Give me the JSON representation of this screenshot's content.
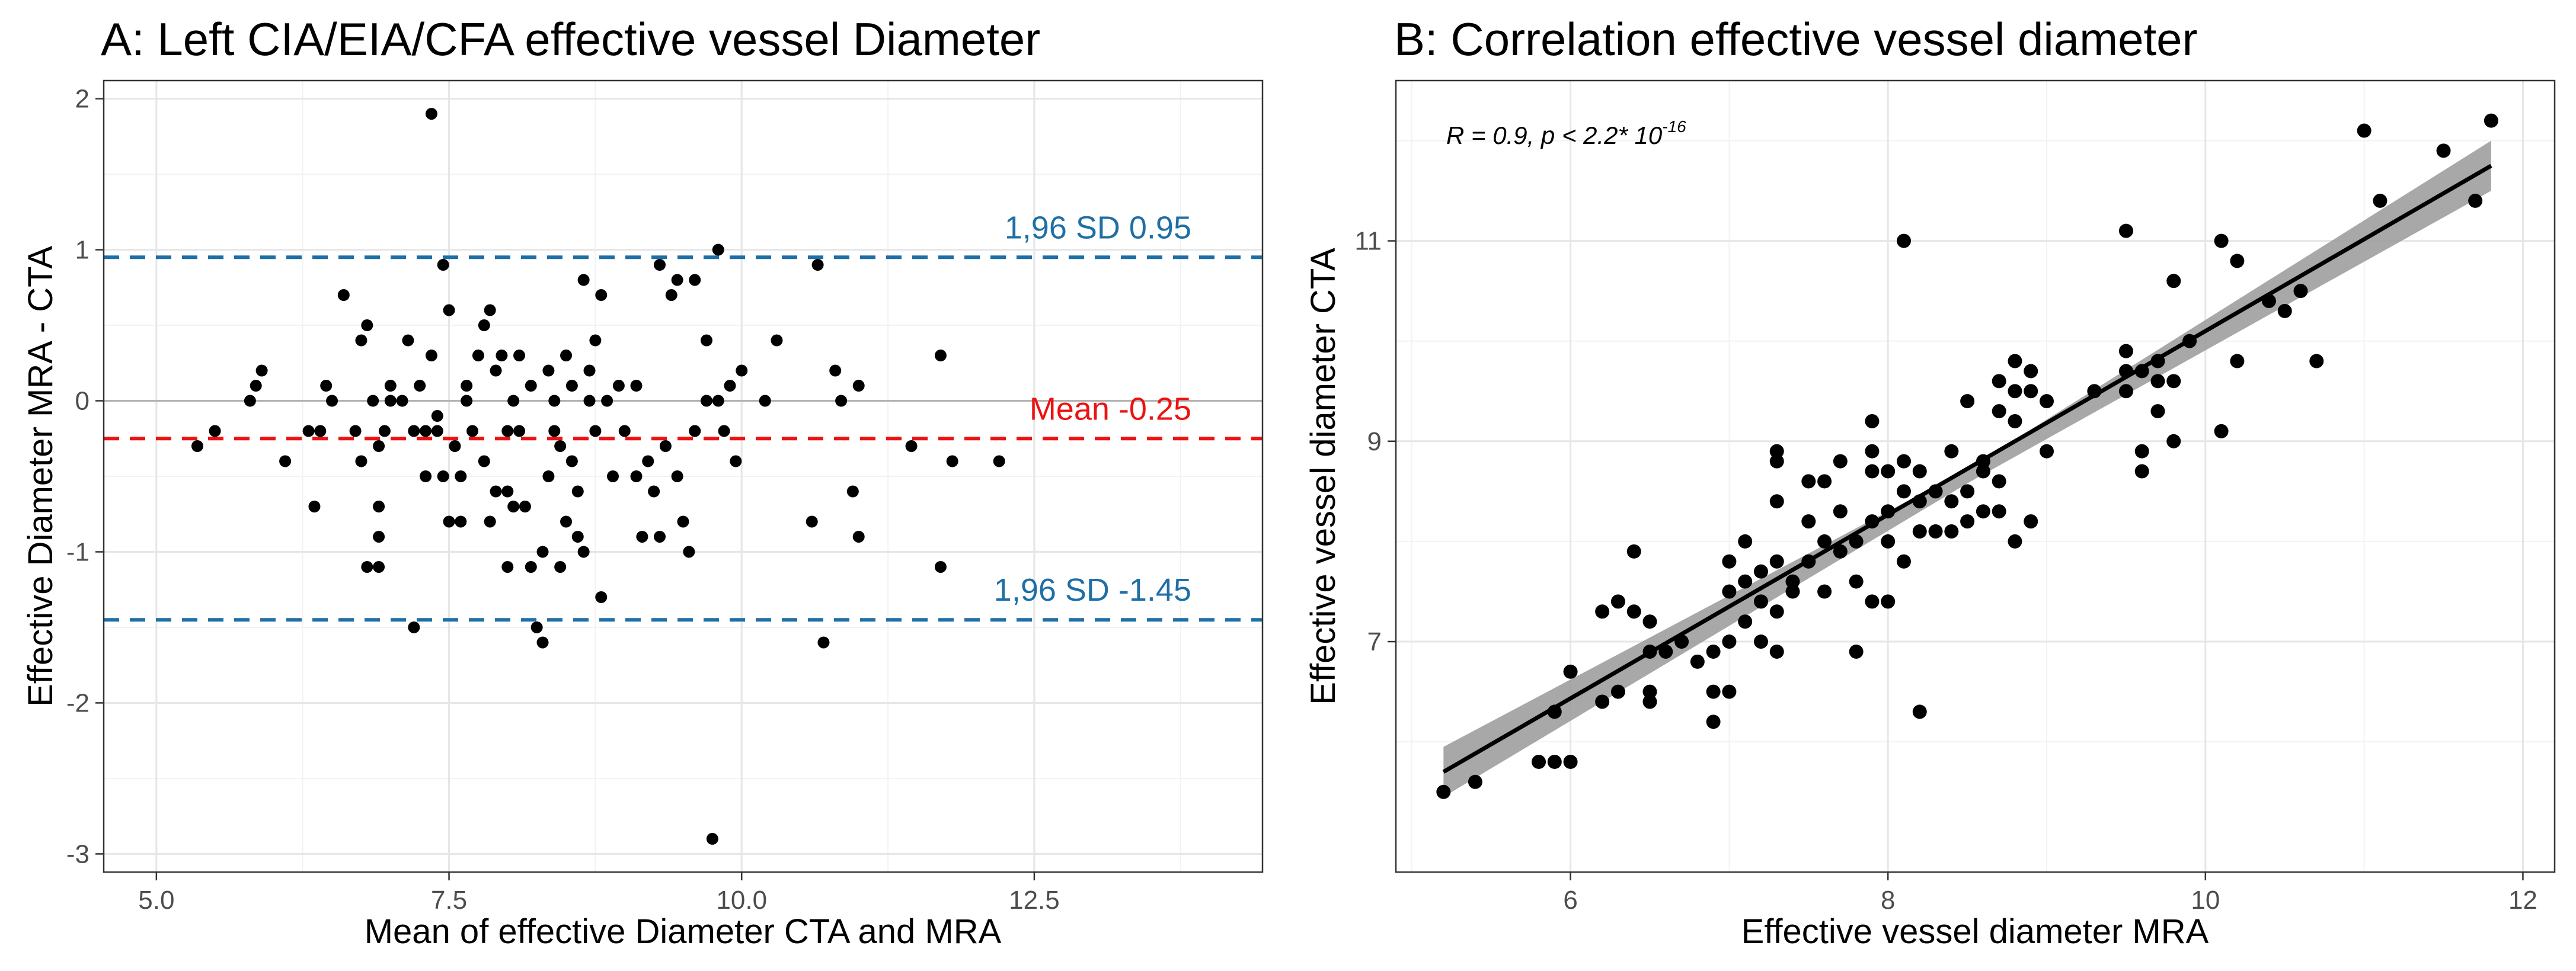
{
  "chart_data": [
    {
      "type": "scatter",
      "title": "A: Left CIA/EIA/CFA effective vessel Diameter",
      "xlabel": "Mean of effective Diameter CTA and MRA",
      "ylabel": "Effective Diameter MRA - CTA",
      "xlim": [
        4.55,
        14.45
      ],
      "ylim": [
        -3.12,
        2.12
      ],
      "xticks": [
        5.0,
        7.5,
        10.0,
        12.5
      ],
      "xtick_labels": [
        "5.0",
        "7.5",
        "10.0",
        "12.5"
      ],
      "yticks": [
        -3,
        -2,
        -1,
        0,
        1,
        2
      ],
      "ytick_labels": [
        "-3",
        "-2",
        "-1",
        "0",
        "1",
        "2"
      ],
      "zero_line": 0,
      "reference_lines": [
        {
          "name": "upper-loa",
          "value": 0.95,
          "label": "1,96 SD  0.95",
          "color": "#1f6fa6",
          "style": "dashed"
        },
        {
          "name": "mean-bias",
          "value": -0.25,
          "label": "Mean -0.25",
          "color": "#ee1111",
          "style": "dashed"
        },
        {
          "name": "lower-loa",
          "value": -1.45,
          "label": "1,96 SD -1.45",
          "color": "#1f6fa6",
          "style": "dashed"
        }
      ],
      "points": [
        [
          5.35,
          -0.3
        ],
        [
          5.5,
          -0.2
        ],
        [
          5.8,
          0.0
        ],
        [
          5.85,
          0.1
        ],
        [
          5.9,
          0.2
        ],
        [
          6.1,
          -0.4
        ],
        [
          6.3,
          -0.2
        ],
        [
          6.35,
          -0.7
        ],
        [
          6.4,
          -0.2
        ],
        [
          6.45,
          0.1
        ],
        [
          6.5,
          0.0
        ],
        [
          6.6,
          0.7
        ],
        [
          6.7,
          -0.2
        ],
        [
          6.75,
          0.4
        ],
        [
          6.75,
          -0.4
        ],
        [
          6.8,
          0.5
        ],
        [
          6.8,
          -1.1
        ],
        [
          6.85,
          0.0
        ],
        [
          6.9,
          -0.3
        ],
        [
          6.9,
          -0.7
        ],
        [
          6.9,
          -0.9
        ],
        [
          6.9,
          -1.1
        ],
        [
          6.95,
          -0.2
        ],
        [
          7.0,
          0.1
        ],
        [
          7.0,
          0.0
        ],
        [
          7.1,
          0.0
        ],
        [
          7.15,
          0.4
        ],
        [
          7.2,
          -0.2
        ],
        [
          7.2,
          -1.5
        ],
        [
          7.25,
          0.1
        ],
        [
          7.3,
          -0.2
        ],
        [
          7.3,
          -0.5
        ],
        [
          7.35,
          1.9
        ],
        [
          7.35,
          0.3
        ],
        [
          7.4,
          -0.1
        ],
        [
          7.4,
          -0.2
        ],
        [
          7.45,
          0.9
        ],
        [
          7.45,
          -0.5
        ],
        [
          7.5,
          0.6
        ],
        [
          7.5,
          -0.8
        ],
        [
          7.55,
          -0.3
        ],
        [
          7.6,
          -0.5
        ],
        [
          7.6,
          -0.8
        ],
        [
          7.65,
          0.0
        ],
        [
          7.65,
          0.1
        ],
        [
          7.7,
          -0.2
        ],
        [
          7.75,
          0.3
        ],
        [
          7.8,
          0.5
        ],
        [
          7.8,
          -0.4
        ],
        [
          7.85,
          0.6
        ],
        [
          7.85,
          -0.8
        ],
        [
          7.9,
          0.2
        ],
        [
          7.9,
          -0.6
        ],
        [
          7.95,
          0.3
        ],
        [
          8.0,
          -0.2
        ],
        [
          8.0,
          -0.6
        ],
        [
          8.0,
          -1.1
        ],
        [
          8.05,
          0.0
        ],
        [
          8.05,
          -0.7
        ],
        [
          8.1,
          0.3
        ],
        [
          8.1,
          -0.2
        ],
        [
          8.15,
          -0.7
        ],
        [
          8.2,
          0.1
        ],
        [
          8.2,
          -1.1
        ],
        [
          8.25,
          -1.5
        ],
        [
          8.3,
          -1.6
        ],
        [
          8.3,
          -1.0
        ],
        [
          8.35,
          0.2
        ],
        [
          8.35,
          -0.5
        ],
        [
          8.4,
          0.0
        ],
        [
          8.4,
          -0.2
        ],
        [
          8.45,
          -0.3
        ],
        [
          8.45,
          -1.1
        ],
        [
          8.5,
          0.3
        ],
        [
          8.5,
          -0.8
        ],
        [
          8.55,
          0.1
        ],
        [
          8.55,
          -0.4
        ],
        [
          8.6,
          -0.6
        ],
        [
          8.6,
          -0.9
        ],
        [
          8.65,
          0.8
        ],
        [
          8.65,
          -1.0
        ],
        [
          8.7,
          0.2
        ],
        [
          8.7,
          0.0
        ],
        [
          8.75,
          0.4
        ],
        [
          8.75,
          -0.2
        ],
        [
          8.8,
          0.7
        ],
        [
          8.8,
          -1.3
        ],
        [
          8.85,
          0.0
        ],
        [
          8.9,
          -0.5
        ],
        [
          8.95,
          0.1
        ],
        [
          9.0,
          -0.2
        ],
        [
          9.1,
          0.1
        ],
        [
          9.1,
          -0.5
        ],
        [
          9.15,
          -0.9
        ],
        [
          9.2,
          -0.4
        ],
        [
          9.25,
          -0.6
        ],
        [
          9.3,
          0.9
        ],
        [
          9.3,
          -0.9
        ],
        [
          9.35,
          -0.3
        ],
        [
          9.4,
          0.7
        ],
        [
          9.45,
          -0.5
        ],
        [
          9.45,
          0.8
        ],
        [
          9.5,
          -0.8
        ],
        [
          9.55,
          -1.0
        ],
        [
          9.6,
          0.8
        ],
        [
          9.6,
          -0.2
        ],
        [
          9.7,
          0.4
        ],
        [
          9.7,
          0.0
        ],
        [
          9.75,
          -2.9
        ],
        [
          9.8,
          1.0
        ],
        [
          9.8,
          0.0
        ],
        [
          9.85,
          -0.2
        ],
        [
          9.9,
          0.1
        ],
        [
          9.95,
          -0.4
        ],
        [
          10.0,
          0.2
        ],
        [
          10.2,
          0.0
        ],
        [
          10.3,
          0.4
        ],
        [
          10.6,
          -0.8
        ],
        [
          10.65,
          0.9
        ],
        [
          10.7,
          -1.6
        ],
        [
          10.8,
          0.2
        ],
        [
          10.85,
          0.0
        ],
        [
          10.95,
          -0.6
        ],
        [
          11.0,
          -0.9
        ],
        [
          11.0,
          0.1
        ],
        [
          11.45,
          -0.3
        ],
        [
          11.7,
          0.3
        ],
        [
          11.7,
          -1.1
        ],
        [
          11.8,
          -0.4
        ],
        [
          12.2,
          -0.4
        ]
      ]
    },
    {
      "type": "scatter",
      "title": "B: Correlation effective vessel diameter",
      "xlabel": "Effective vessel diameter MRA",
      "ylabel": "Effective vessel diameter CTA",
      "xlim": [
        4.9,
        12.2
      ],
      "ylim": [
        4.7,
        12.6
      ],
      "xticks": [
        6,
        8,
        10,
        12
      ],
      "xtick_labels": [
        "6",
        "8",
        "10",
        "12"
      ],
      "yticks": [
        7,
        9,
        11
      ],
      "ytick_labels": [
        "7",
        "9",
        "11"
      ],
      "annotation": {
        "r_text": "R = 0.9, p < 2.2* 10",
        "exponent": "-16"
      },
      "fit_line": {
        "x": [
          5.2,
          11.8
        ],
        "y": [
          5.7,
          11.75
        ]
      },
      "confidence_band": {
        "x": [
          5.2,
          8.5,
          11.8
        ],
        "lower": [
          5.45,
          8.58,
          11.5
        ],
        "upper": [
          5.95,
          8.72,
          12.0
        ]
      },
      "points": [
        [
          5.2,
          5.5
        ],
        [
          5.4,
          5.6
        ],
        [
          5.8,
          5.8
        ],
        [
          5.9,
          5.8
        ],
        [
          6.0,
          5.8
        ],
        [
          5.9,
          6.3
        ],
        [
          6.0,
          6.7
        ],
        [
          6.2,
          6.4
        ],
        [
          6.2,
          7.3
        ],
        [
          6.3,
          6.5
        ],
        [
          6.3,
          7.4
        ],
        [
          6.4,
          7.9
        ],
        [
          6.4,
          7.3
        ],
        [
          6.5,
          6.5
        ],
        [
          6.5,
          6.4
        ],
        [
          6.5,
          6.9
        ],
        [
          6.5,
          7.2
        ],
        [
          6.6,
          6.9
        ],
        [
          6.7,
          7.0
        ],
        [
          6.8,
          6.8
        ],
        [
          6.9,
          6.2
        ],
        [
          6.9,
          6.5
        ],
        [
          6.9,
          6.9
        ],
        [
          7.0,
          7.0
        ],
        [
          7.0,
          6.5
        ],
        [
          7.0,
          7.5
        ],
        [
          7.0,
          7.8
        ],
        [
          7.1,
          7.2
        ],
        [
          7.1,
          7.6
        ],
        [
          7.1,
          8.0
        ],
        [
          7.2,
          7.0
        ],
        [
          7.2,
          7.4
        ],
        [
          7.2,
          7.7
        ],
        [
          7.3,
          6.9
        ],
        [
          7.3,
          7.3
        ],
        [
          7.3,
          7.8
        ],
        [
          7.3,
          8.4
        ],
        [
          7.3,
          8.8
        ],
        [
          7.3,
          8.9
        ],
        [
          7.4,
          7.6
        ],
        [
          7.4,
          7.5
        ],
        [
          7.5,
          7.8
        ],
        [
          7.5,
          8.2
        ],
        [
          7.5,
          8.6
        ],
        [
          7.6,
          7.5
        ],
        [
          7.6,
          8.0
        ],
        [
          7.6,
          8.6
        ],
        [
          7.7,
          7.9
        ],
        [
          7.7,
          8.3
        ],
        [
          7.7,
          8.8
        ],
        [
          7.8,
          6.9
        ],
        [
          7.8,
          7.6
        ],
        [
          7.8,
          8.0
        ],
        [
          7.9,
          7.4
        ],
        [
          7.9,
          8.2
        ],
        [
          7.9,
          8.7
        ],
        [
          7.9,
          8.9
        ],
        [
          7.9,
          9.2
        ],
        [
          8.0,
          7.4
        ],
        [
          8.0,
          8.0
        ],
        [
          8.0,
          8.3
        ],
        [
          8.0,
          8.7
        ],
        [
          8.1,
          7.8
        ],
        [
          8.1,
          8.5
        ],
        [
          8.1,
          8.8
        ],
        [
          8.1,
          11.0
        ],
        [
          8.2,
          6.3
        ],
        [
          8.2,
          8.1
        ],
        [
          8.2,
          8.4
        ],
        [
          8.2,
          8.7
        ],
        [
          8.3,
          8.1
        ],
        [
          8.3,
          8.5
        ],
        [
          8.4,
          8.1
        ],
        [
          8.4,
          8.4
        ],
        [
          8.4,
          8.9
        ],
        [
          8.5,
          8.2
        ],
        [
          8.5,
          8.5
        ],
        [
          8.5,
          9.4
        ],
        [
          8.6,
          8.3
        ],
        [
          8.6,
          8.7
        ],
        [
          8.6,
          8.8
        ],
        [
          8.7,
          8.3
        ],
        [
          8.7,
          8.6
        ],
        [
          8.7,
          9.3
        ],
        [
          8.7,
          9.6
        ],
        [
          8.8,
          8.0
        ],
        [
          8.8,
          9.2
        ],
        [
          8.8,
          9.5
        ],
        [
          8.8,
          9.8
        ],
        [
          8.9,
          8.2
        ],
        [
          8.9,
          9.5
        ],
        [
          8.9,
          9.7
        ],
        [
          9.0,
          8.9
        ],
        [
          9.0,
          9.4
        ],
        [
          9.3,
          9.5
        ],
        [
          9.5,
          9.5
        ],
        [
          9.5,
          9.7
        ],
        [
          9.5,
          9.9
        ],
        [
          9.5,
          11.1
        ],
        [
          9.6,
          8.7
        ],
        [
          9.6,
          8.9
        ],
        [
          9.6,
          9.7
        ],
        [
          9.7,
          9.3
        ],
        [
          9.7,
          9.6
        ],
        [
          9.7,
          9.8
        ],
        [
          9.8,
          9.0
        ],
        [
          9.8,
          9.6
        ],
        [
          9.8,
          10.6
        ],
        [
          9.9,
          10.0
        ],
        [
          10.1,
          9.1
        ],
        [
          10.1,
          11.0
        ],
        [
          10.2,
          9.8
        ],
        [
          10.2,
          10.8
        ],
        [
          10.4,
          10.4
        ],
        [
          10.5,
          10.3
        ],
        [
          10.6,
          10.5
        ],
        [
          10.7,
          9.8
        ],
        [
          11.0,
          12.1
        ],
        [
          11.1,
          11.4
        ],
        [
          11.5,
          11.9
        ],
        [
          11.7,
          11.4
        ],
        [
          11.8,
          12.2
        ]
      ]
    }
  ]
}
